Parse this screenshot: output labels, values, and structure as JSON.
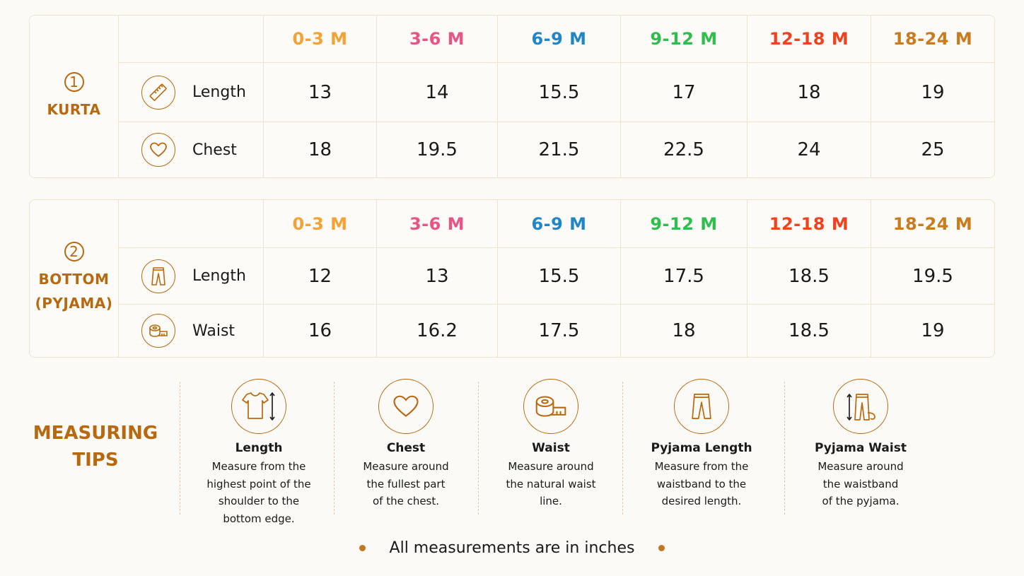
{
  "sizes": [
    {
      "label": "0-3 M",
      "color": "#f4a236"
    },
    {
      "label": "3-6 M",
      "color": "#e85585"
    },
    {
      "label": "6-9 M",
      "color": "#1f86c8"
    },
    {
      "label": "9-12 M",
      "color": "#2fbe4e"
    },
    {
      "label": "12-18 M",
      "color": "#f0421e"
    },
    {
      "label": "18-24 M",
      "color": "#c97b1d"
    }
  ],
  "kurta": {
    "number": "1",
    "title": "KURTA",
    "rows": [
      {
        "label": "Length",
        "icon": "ruler-icon",
        "values": [
          "13",
          "14",
          "15.5",
          "17",
          "18",
          "19"
        ]
      },
      {
        "label": "Chest",
        "icon": "heart-icon",
        "values": [
          "18",
          "19.5",
          "21.5",
          "22.5",
          "24",
          "25"
        ]
      }
    ]
  },
  "bottom": {
    "number": "2",
    "title_line1": "BOTTOM",
    "title_line2": "(PYJAMA)",
    "rows": [
      {
        "label": "Length",
        "icon": "pants-icon",
        "values": [
          "12",
          "13",
          "15.5",
          "17.5",
          "18.5",
          "19.5"
        ]
      },
      {
        "label": "Waist",
        "icon": "measuring-tape-icon",
        "values": [
          "16",
          "16.2",
          "17.5",
          "18",
          "18.5",
          "19"
        ]
      }
    ]
  },
  "tips": {
    "title_line1": "MEASURING",
    "title_line2": "TIPS",
    "items": [
      {
        "title": "Length",
        "desc": "Measure from the\nhighest point of the\nshoulder to the\nbottom edge.",
        "icon": "tshirt-length-icon"
      },
      {
        "title": "Chest",
        "desc": "Measure around\nthe fullest part\nof the chest.",
        "icon": "heart-icon"
      },
      {
        "title": "Waist",
        "desc": "Measure around\nthe natural waist\nline.",
        "icon": "measuring-tape-icon"
      },
      {
        "title": "Pyjama Length",
        "desc": "Measure from the\nwaistband to the\ndesired length.",
        "icon": "pants-icon"
      },
      {
        "title": "Pyjama Waist",
        "desc": "Measure around\nthe waistband\nof the pyjama.",
        "icon": "pants-waist-icon"
      }
    ]
  },
  "footer": {
    "note": "All measurements are in inches"
  },
  "colors": {
    "accent": "#b8690f",
    "border": "#efe3cf",
    "background": "#fcfaf6"
  }
}
